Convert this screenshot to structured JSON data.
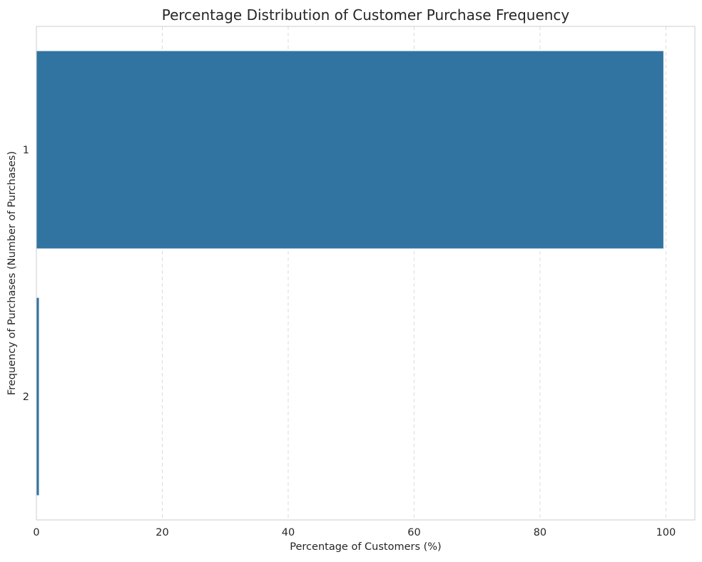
{
  "chart_data": {
    "type": "bar",
    "orientation": "horizontal",
    "title": "Percentage Distribution of Customer Purchase Frequency",
    "xlabel": "Percentage of Customers (%)",
    "ylabel": "Frequency of Purchases (Number of Purchases)",
    "categories": [
      "1",
      "2"
    ],
    "values": [
      99.6,
      0.4
    ],
    "xlim": [
      0,
      104.6
    ],
    "xticks": [
      0,
      20,
      40,
      60,
      80,
      100
    ],
    "grid": "x-dashed",
    "bar_color": "#3274a1",
    "legend": "none"
  }
}
